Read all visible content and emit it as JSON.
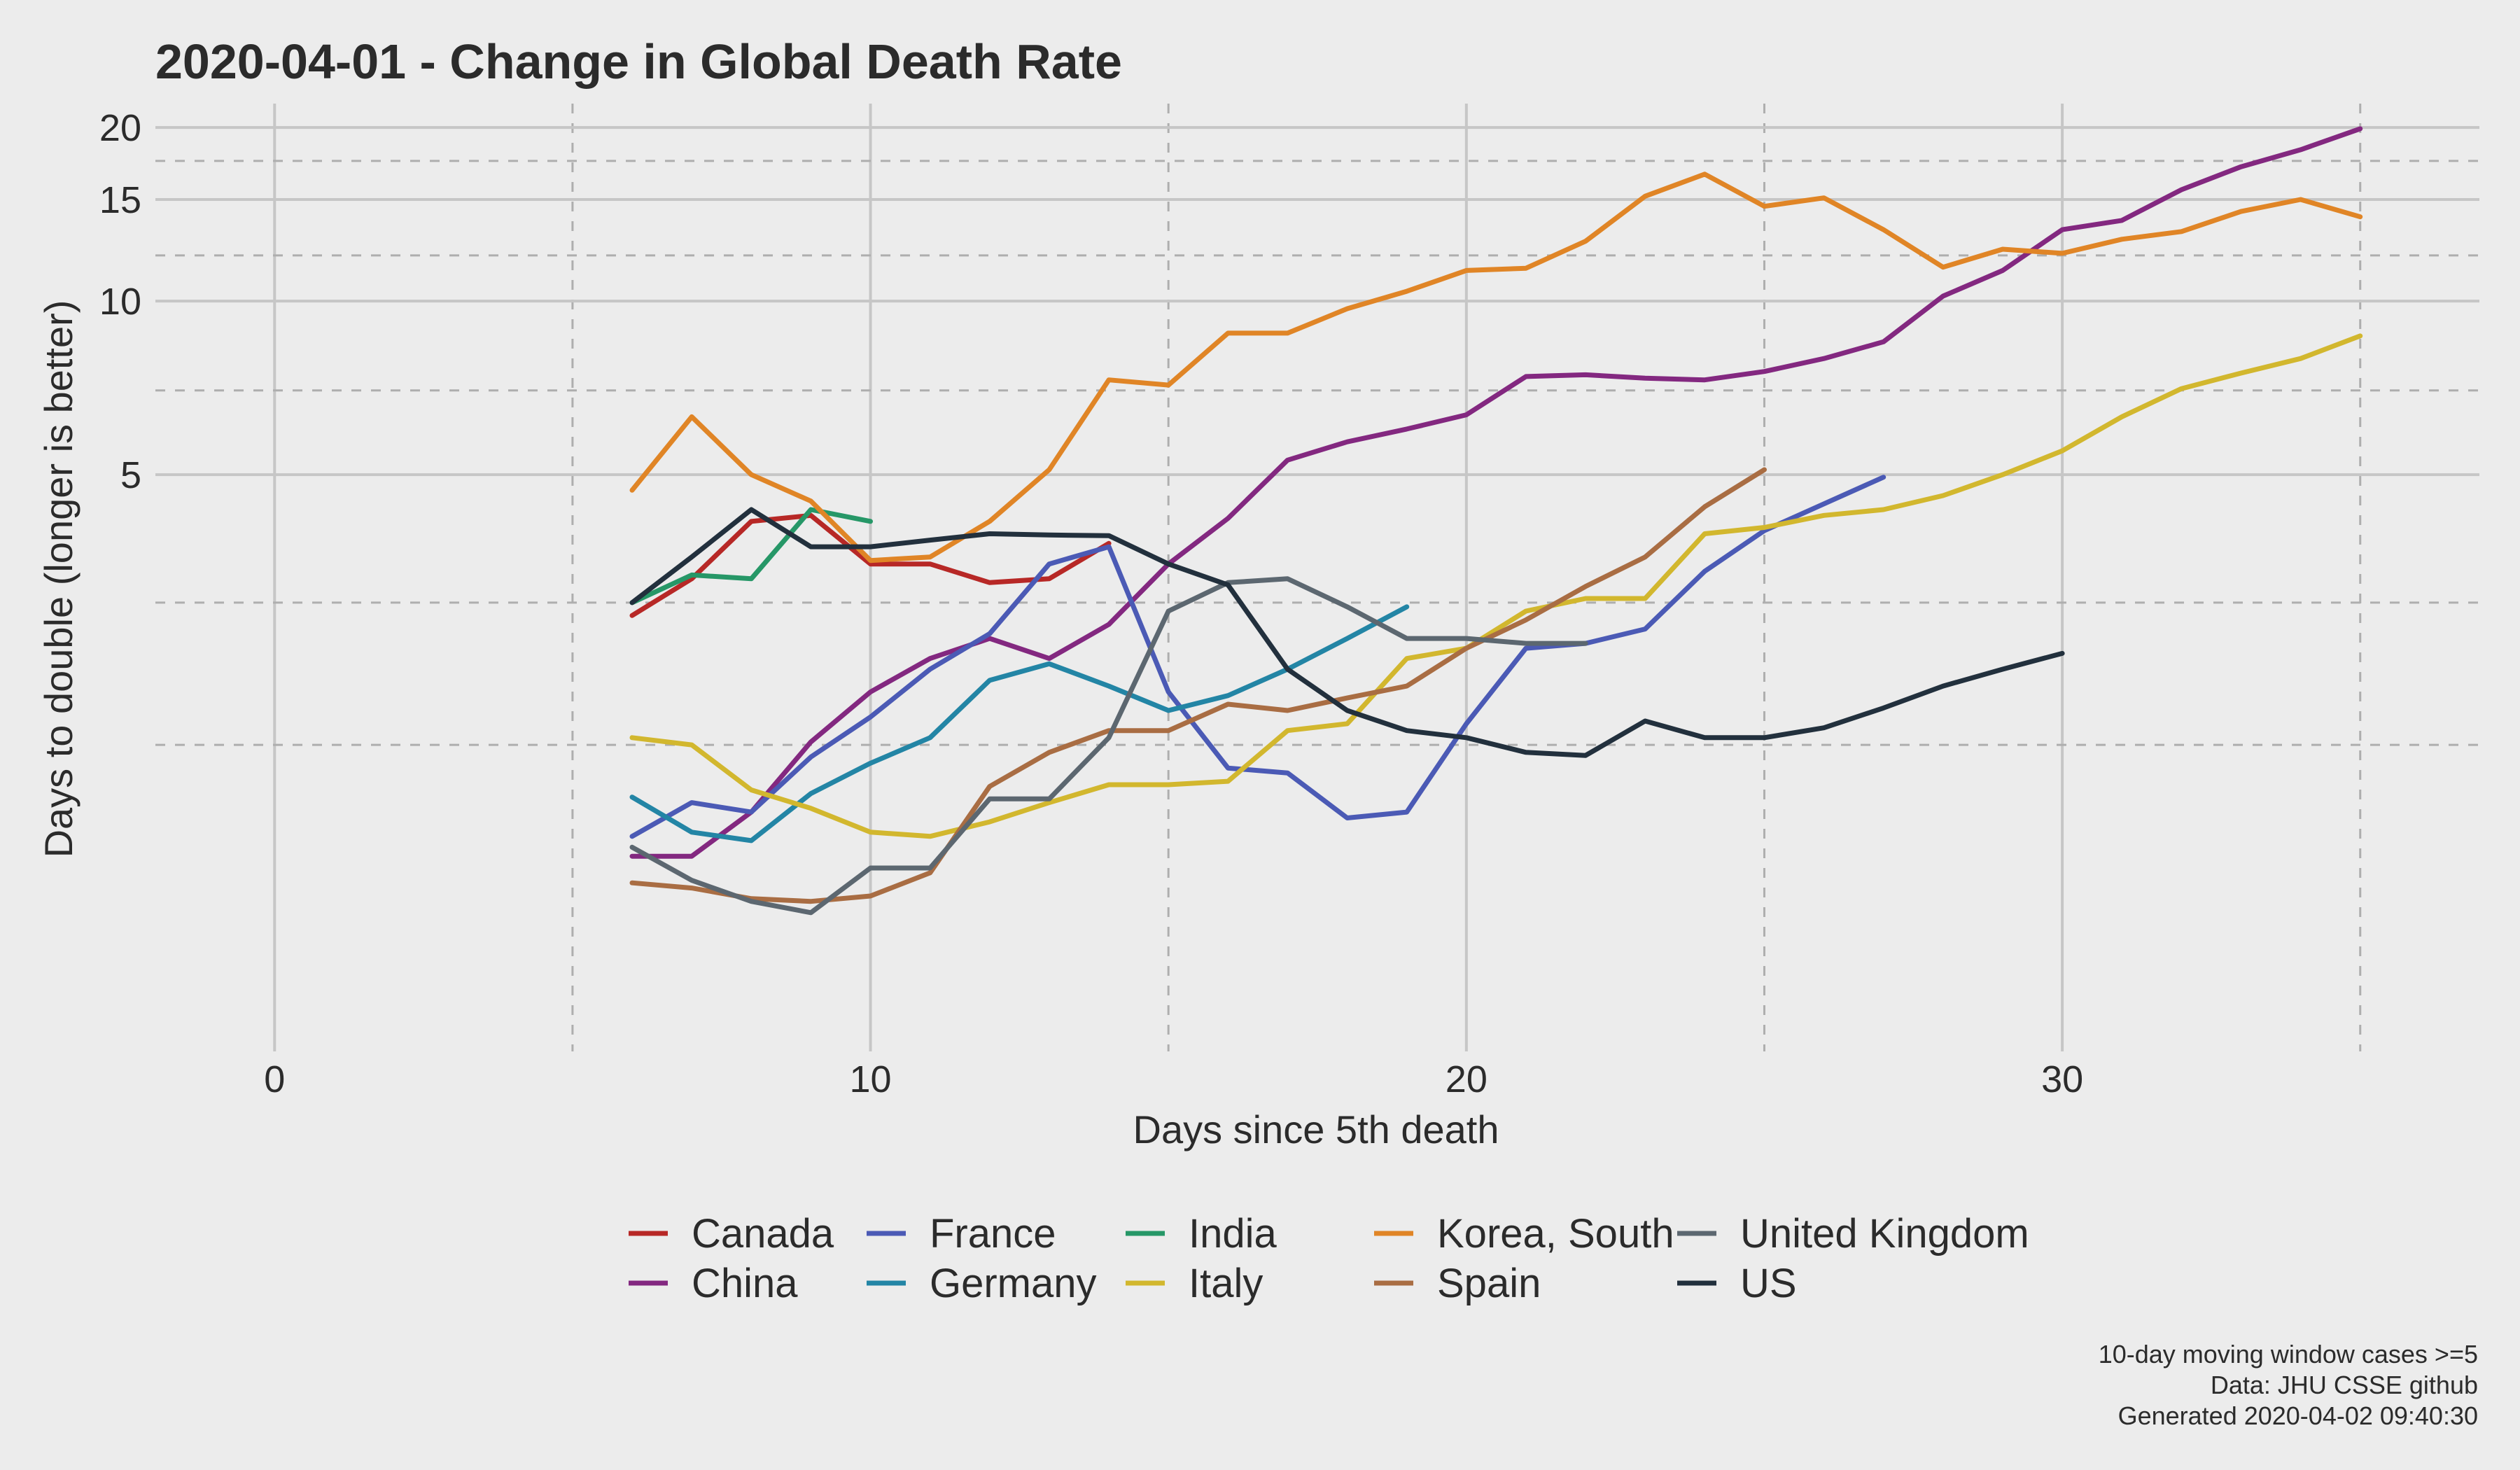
{
  "chart_data": {
    "type": "line",
    "title": "2020-04-01  - Change in Global Death Rate",
    "xlabel": "Days since 5th death",
    "ylabel": "Days to double (longer is better)",
    "xlim": [
      -2,
      37
    ],
    "ylim": [
      0.5,
      22
    ],
    "y_scale": "log",
    "x_ticks": [
      0,
      10,
      20,
      30
    ],
    "x_tick_labels": [
      "0",
      "10",
      "20",
      "30"
    ],
    "x_minor_grid": [
      5,
      15,
      25,
      35
    ],
    "y_ticks": [
      5,
      10,
      15,
      20
    ],
    "y_tick_labels": [
      "5",
      "10",
      "15",
      "20"
    ],
    "y_minor_grid": [
      1.7,
      3.0,
      7.0,
      12.0,
      17.5
    ],
    "legend_position": "bottom",
    "series": [
      {
        "name": "Canada",
        "color": "#b72826",
        "x": [
          6,
          7,
          8,
          9,
          10,
          11,
          12,
          13,
          14
        ],
        "y": [
          2.85,
          3.3,
          4.15,
          4.25,
          3.5,
          3.5,
          3.25,
          3.3,
          3.8
        ]
      },
      {
        "name": "China",
        "color": "#832880",
        "x": [
          6,
          7,
          8,
          9,
          10,
          11,
          12,
          13,
          14,
          15,
          16,
          17,
          18,
          19,
          20,
          21,
          22,
          23,
          24,
          25,
          26,
          27,
          28,
          29,
          30,
          31,
          32,
          33,
          34,
          35
        ],
        "y": [
          1.09,
          1.09,
          1.3,
          1.72,
          2.1,
          2.4,
          2.6,
          2.4,
          2.75,
          3.5,
          4.2,
          5.3,
          5.7,
          6.0,
          6.35,
          7.4,
          7.45,
          7.35,
          7.3,
          7.55,
          7.95,
          8.5,
          10.2,
          11.3,
          13.3,
          13.8,
          15.6,
          17.1,
          18.3,
          19.9
        ]
      },
      {
        "name": "France",
        "color": "#4b5ab5",
        "x": [
          6,
          7,
          8,
          9,
          10,
          11,
          12,
          13,
          14,
          15,
          16,
          17,
          18,
          19,
          20,
          21,
          22,
          23,
          24,
          25,
          26,
          27
        ],
        "y": [
          1.18,
          1.35,
          1.3,
          1.62,
          1.9,
          2.3,
          2.65,
          3.5,
          3.75,
          2.1,
          1.55,
          1.52,
          1.27,
          1.3,
          1.85,
          2.5,
          2.55,
          2.7,
          3.4,
          4.0,
          4.45,
          4.95
        ]
      },
      {
        "name": "Germany",
        "color": "#2385a5",
        "x": [
          6,
          7,
          8,
          9,
          10,
          11,
          12,
          13,
          14,
          15,
          16,
          17,
          18,
          19
        ],
        "y": [
          1.38,
          1.2,
          1.16,
          1.4,
          1.58,
          1.75,
          2.2,
          2.35,
          2.15,
          1.95,
          2.07,
          2.3,
          2.6,
          2.95
        ]
      },
      {
        "name": "India",
        "color": "#269767",
        "x": [
          6,
          7,
          8,
          9,
          10
        ],
        "y": [
          3.0,
          3.35,
          3.3,
          4.35,
          4.15
        ]
      },
      {
        "name": "Italy",
        "color": "#d2b72e",
        "x": [
          6,
          7,
          8,
          9,
          10,
          11,
          12,
          13,
          14,
          15,
          16,
          17,
          18,
          19,
          20,
          21,
          22,
          23,
          24,
          25,
          26,
          27,
          28,
          29,
          30,
          31,
          32,
          33,
          34,
          35
        ],
        "y": [
          1.75,
          1.7,
          1.42,
          1.32,
          1.2,
          1.18,
          1.25,
          1.35,
          1.45,
          1.45,
          1.47,
          1.8,
          1.85,
          2.4,
          2.5,
          2.9,
          3.05,
          3.05,
          3.95,
          4.05,
          4.25,
          4.35,
          4.6,
          5.0,
          5.5,
          6.3,
          7.05,
          7.5,
          7.95,
          8.7
        ]
      },
      {
        "name": "Korea, South",
        "color": "#e08526",
        "x": [
          6,
          7,
          8,
          9,
          10,
          11,
          12,
          13,
          14,
          15,
          16,
          17,
          18,
          19,
          20,
          21,
          22,
          23,
          24,
          25,
          26,
          27,
          28,
          29,
          30,
          31,
          32,
          33,
          34,
          35
        ],
        "y": [
          4.7,
          6.3,
          5.0,
          4.5,
          3.55,
          3.6,
          4.15,
          5.1,
          7.3,
          7.15,
          8.8,
          8.8,
          9.7,
          10.4,
          11.3,
          11.4,
          12.7,
          15.2,
          16.6,
          14.6,
          15.1,
          13.3,
          11.45,
          12.3,
          12.1,
          12.8,
          13.2,
          14.3,
          15.0,
          14.0
        ]
      },
      {
        "name": "Spain",
        "color": "#a96d43",
        "x": [
          6,
          7,
          8,
          9,
          10,
          11,
          12,
          13,
          14,
          15,
          16,
          17,
          18,
          19,
          20,
          21,
          22,
          23,
          24,
          25
        ],
        "y": [
          0.98,
          0.96,
          0.92,
          0.91,
          0.93,
          1.02,
          1.44,
          1.65,
          1.8,
          1.8,
          2.0,
          1.95,
          2.05,
          2.15,
          2.5,
          2.8,
          3.2,
          3.6,
          4.4,
          5.1
        ]
      },
      {
        "name": "United Kingdom",
        "color": "#5c6770",
        "x": [
          6,
          7,
          8,
          9,
          10,
          11,
          12,
          13,
          14,
          15,
          16,
          17,
          18,
          19,
          20,
          21,
          22
        ],
        "y": [
          1.13,
          0.99,
          0.91,
          0.87,
          1.04,
          1.04,
          1.37,
          1.37,
          1.75,
          2.9,
          3.25,
          3.3,
          2.95,
          2.6,
          2.6,
          2.55,
          2.55
        ]
      },
      {
        "name": "US",
        "color": "#22303d",
        "x": [
          6,
          7,
          8,
          9,
          10,
          11,
          12,
          13,
          14,
          15,
          16,
          17,
          18,
          19,
          20,
          21,
          22,
          23,
          24,
          25,
          26,
          27,
          28,
          29,
          30
        ],
        "y": [
          3.0,
          3.6,
          4.35,
          3.75,
          3.75,
          3.85,
          3.95,
          3.93,
          3.92,
          3.5,
          3.22,
          2.3,
          1.95,
          1.8,
          1.75,
          1.65,
          1.63,
          1.87,
          1.75,
          1.75,
          1.82,
          1.97,
          2.15,
          2.3,
          2.45
        ]
      }
    ]
  },
  "caption": {
    "line1": "10-day moving window cases >=5",
    "line2": "Data: JHU CSSE github",
    "line3": "Generated 2020-04-02 09:40:30"
  }
}
